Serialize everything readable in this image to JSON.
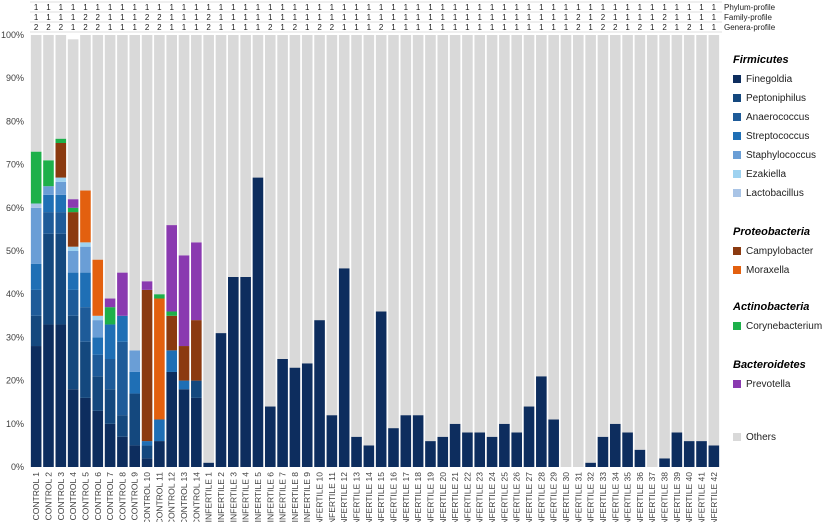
{
  "chart_data": {
    "type": "bar",
    "stacked": true,
    "ylim": [
      0,
      100
    ],
    "y_ticks": [
      "0%",
      "10%",
      "20%",
      "30%",
      "40%",
      "50%",
      "60%",
      "70%",
      "80%",
      "90%",
      "100%"
    ],
    "grid": false,
    "legend_position": "right",
    "categories": [
      "CONTROL 1",
      "CONTROL 2",
      "CONTROL 3",
      "CONTROL 4",
      "CONTROL 5",
      "CONTROL 6",
      "CONTROL 7",
      "CONTROL 8",
      "CONTROL 9",
      "CONTROL 10",
      "CONTROL 11",
      "CONTROL 12",
      "CONTROL 13",
      "CONTROL 14",
      "INFERTILE 1",
      "INFERTILE 2",
      "INFERTILE 3",
      "INFERTILE 4",
      "INFERTILE 5",
      "INFERTILE 6",
      "INFERTILE 7",
      "INFERTILE 8",
      "INFERTILE 9",
      "INFERTILE 10",
      "INFERTILE 11",
      "INFERTILE 12",
      "INFERTILE 13",
      "INFERTILE 14",
      "INFERTILE 15",
      "INFERTILE 16",
      "INFERTILE 17",
      "INFERTILE 18",
      "INFERTILE 19",
      "INFERTILE 20",
      "INFERTILE 21",
      "INFERTILE 22",
      "INFERTILE 23",
      "INFERTILE 24",
      "INFERTILE 25",
      "INFERTILE 26",
      "INFERTILE 27",
      "INFERTILE 28",
      "INFERTILE 29",
      "INFERTILE 30",
      "INFERTILE 31",
      "INFERTILE 32",
      "INFERTILE 33",
      "INFERTILE 34",
      "INFERTILE 35",
      "INFERTILE 36",
      "INFERTILE 37",
      "INFERTILE 38",
      "INFERTILE 39",
      "INFERTILE 40",
      "INFERTILE 41",
      "INFERTILE 42"
    ],
    "profiles": [
      {
        "name": "Phylum-profile",
        "values": [
          "1",
          "1",
          "1",
          "1",
          "1",
          "1",
          "1",
          "1",
          "1",
          "1",
          "1",
          "1",
          "1",
          "1",
          "1",
          "1",
          "1",
          "1",
          "1",
          "1",
          "1",
          "1",
          "1",
          "1",
          "1",
          "1",
          "1",
          "1",
          "1",
          "1",
          "1",
          "1",
          "1",
          "1",
          "1",
          "1",
          "1",
          "1",
          "1",
          "1",
          "1",
          "1",
          "1",
          "1",
          "1",
          "1",
          "1",
          "1",
          "1",
          "1",
          "1",
          "1",
          "1",
          "1",
          "1",
          "1"
        ]
      },
      {
        "name": "Family-profile",
        "values": [
          "1",
          "1",
          "1",
          "1",
          "2",
          "2",
          "1",
          "1",
          "1",
          "2",
          "2",
          "1",
          "1",
          "1",
          "2",
          "1",
          "1",
          "1",
          "1",
          "1",
          "1",
          "1",
          "1",
          "1",
          "1",
          "1",
          "1",
          "1",
          "1",
          "1",
          "1",
          "1",
          "1",
          "1",
          "1",
          "1",
          "1",
          "1",
          "1",
          "1",
          "1",
          "1",
          "1",
          "1",
          "2",
          "1",
          "2",
          "1",
          "1",
          "1",
          "1",
          "2",
          "1",
          "1",
          "1",
          "1"
        ]
      },
      {
        "name": "Genera-profile",
        "values": [
          "2",
          "2",
          "2",
          "1",
          "2",
          "2",
          "1",
          "1",
          "1",
          "2",
          "2",
          "1",
          "1",
          "1",
          "2",
          "1",
          "1",
          "1",
          "1",
          "2",
          "1",
          "2",
          "1",
          "2",
          "2",
          "1",
          "1",
          "1",
          "2",
          "1",
          "1",
          "1",
          "1",
          "1",
          "1",
          "1",
          "1",
          "1",
          "1",
          "1",
          "1",
          "1",
          "1",
          "1",
          "2",
          "1",
          "2",
          "2",
          "1",
          "2",
          "1",
          "2",
          "1",
          "2",
          "1",
          "1"
        ]
      }
    ],
    "legend_groups": [
      {
        "name": "Firmicutes",
        "series": [
          "Finegoldia",
          "Peptoniphilus",
          "Anaerococcus",
          "Streptococcus",
          "Staphylococcus",
          "Ezakiella",
          "Lactobacillus"
        ]
      },
      {
        "name": "Proteobacteria",
        "series": [
          "Campylobacter",
          "Moraxella"
        ]
      },
      {
        "name": "Actinobacteria",
        "series": [
          "Corynebacterium"
        ]
      },
      {
        "name": "Bacteroidetes",
        "series": [
          "Prevotella"
        ]
      },
      {
        "name": "",
        "series": [
          "Others"
        ]
      }
    ],
    "series": [
      {
        "name": "Finegoldia",
        "color": "#0d2d5e",
        "values": [
          28,
          33,
          33,
          18,
          16,
          13,
          10,
          7,
          5,
          2,
          6,
          22,
          18,
          16,
          1,
          31,
          44,
          44,
          67,
          14,
          25,
          23,
          24,
          34,
          12,
          46,
          7,
          5,
          36,
          9,
          12,
          12,
          6,
          7,
          10,
          8,
          8,
          7,
          10,
          8,
          14,
          21,
          11,
          0,
          0,
          1,
          7,
          10,
          8,
          4,
          0,
          2,
          8,
          6,
          6,
          5
        ]
      },
      {
        "name": "Peptoniphilus",
        "color": "#14487e",
        "values": [
          7,
          21,
          21,
          17,
          13,
          8,
          8,
          5,
          12,
          3,
          0,
          0,
          0,
          4,
          0,
          0,
          0,
          0,
          0,
          0,
          0,
          0,
          0,
          0,
          0,
          0,
          0,
          0,
          0,
          0,
          0,
          0,
          0,
          0,
          0,
          0,
          0,
          0,
          0,
          0,
          0,
          0,
          0,
          0,
          0,
          0,
          0,
          0,
          0,
          0,
          0,
          0,
          0,
          0,
          0,
          0
        ]
      },
      {
        "name": "Anaerococcus",
        "color": "#1e5b99",
        "values": [
          6,
          5,
          5,
          6,
          8,
          5,
          7,
          17,
          0,
          0,
          0,
          0,
          0,
          0,
          0,
          0,
          0,
          0,
          0,
          0,
          0,
          0,
          0,
          0,
          0,
          0,
          0,
          0,
          0,
          0,
          0,
          0,
          0,
          0,
          0,
          0,
          0,
          0,
          0,
          0,
          0,
          0,
          0,
          0,
          0,
          0,
          0,
          0,
          0,
          0,
          0,
          0,
          0,
          0,
          0,
          0
        ]
      },
      {
        "name": "Streptococcus",
        "color": "#1f6fb5",
        "values": [
          6,
          4,
          4,
          4,
          8,
          4,
          8,
          6,
          5,
          1,
          5,
          5,
          2,
          0,
          0,
          0,
          0,
          0,
          0,
          0,
          0,
          0,
          0,
          0,
          0,
          0,
          0,
          0,
          0,
          0,
          0,
          0,
          0,
          0,
          0,
          0,
          0,
          0,
          0,
          0,
          0,
          0,
          0,
          0,
          0,
          0,
          0,
          0,
          0,
          0,
          0,
          0,
          0,
          0,
          0,
          0
        ]
      },
      {
        "name": "Staphylococcus",
        "color": "#6a9ed6",
        "values": [
          13,
          2,
          3,
          5,
          6,
          4,
          0,
          0,
          5,
          0,
          0,
          0,
          0,
          0,
          0,
          0,
          0,
          0,
          0,
          0,
          0,
          0,
          0,
          0,
          0,
          0,
          0,
          0,
          0,
          0,
          0,
          0,
          0,
          0,
          0,
          0,
          0,
          0,
          0,
          0,
          0,
          0,
          0,
          0,
          0,
          0,
          0,
          0,
          0,
          0,
          0,
          0,
          0,
          0,
          0,
          0
        ]
      },
      {
        "name": "Ezakiella",
        "color": "#9ed2f0",
        "values": [
          0,
          0,
          1,
          1,
          1,
          1,
          0,
          0,
          0,
          0,
          0,
          0,
          0,
          0,
          0,
          0,
          0,
          0,
          0,
          0,
          0,
          0,
          0,
          0,
          0,
          0,
          0,
          0,
          0,
          0,
          0,
          0,
          0,
          0,
          0,
          0,
          0,
          0,
          0,
          0,
          0,
          0,
          0,
          0,
          0,
          0,
          0,
          0,
          0,
          0,
          0,
          0,
          0,
          0,
          0,
          0
        ]
      },
      {
        "name": "Lactobacillus",
        "color": "#a9c4e6",
        "values": [
          1,
          0,
          0,
          0,
          0,
          0,
          0,
          0,
          0,
          0,
          0,
          0,
          0,
          0,
          0,
          0,
          0,
          0,
          0,
          0,
          0,
          0,
          0,
          0,
          0,
          0,
          0,
          0,
          0,
          0,
          0,
          0,
          0,
          0,
          0,
          0,
          0,
          0,
          0,
          0,
          0,
          0,
          0,
          0,
          0,
          0,
          0,
          0,
          0,
          0,
          0,
          0,
          0,
          0,
          0,
          0
        ]
      },
      {
        "name": "Campylobacter",
        "color": "#8b3a10",
        "values": [
          0,
          0,
          8,
          8,
          0,
          0,
          0,
          0,
          0,
          35,
          0,
          8,
          8,
          14,
          0,
          0,
          0,
          0,
          0,
          0,
          0,
          0,
          0,
          0,
          0,
          0,
          0,
          0,
          0,
          0,
          0,
          0,
          0,
          0,
          0,
          0,
          0,
          0,
          0,
          0,
          0,
          0,
          0,
          0,
          0,
          0,
          0,
          0,
          0,
          0,
          0,
          0,
          0,
          0,
          0,
          0
        ]
      },
      {
        "name": "Moraxella",
        "color": "#e3600f",
        "values": [
          0,
          0,
          0,
          0,
          12,
          13,
          0,
          0,
          0,
          0,
          28,
          0,
          0,
          0,
          0,
          0,
          0,
          0,
          0,
          0,
          0,
          0,
          0,
          0,
          0,
          0,
          0,
          0,
          0,
          0,
          0,
          0,
          0,
          0,
          0,
          0,
          0,
          0,
          0,
          0,
          0,
          0,
          0,
          0,
          0,
          0,
          0,
          0,
          0,
          0,
          0,
          0,
          0,
          0,
          0,
          0
        ]
      },
      {
        "name": "Corynebacterium",
        "color": "#1db04a",
        "values": [
          12,
          6,
          1,
          1,
          0,
          0,
          4,
          0,
          0,
          0,
          1,
          1,
          0,
          0,
          0,
          0,
          0,
          0,
          0,
          0,
          0,
          0,
          0,
          0,
          0,
          0,
          0,
          0,
          0,
          0,
          0,
          0,
          0,
          0,
          0,
          0,
          0,
          0,
          0,
          0,
          0,
          0,
          0,
          0,
          0,
          0,
          0,
          0,
          0,
          0,
          0,
          0,
          0,
          0,
          0,
          0
        ]
      },
      {
        "name": "Prevotella",
        "color": "#8a3ab0",
        "values": [
          0,
          0,
          0,
          2,
          0,
          0,
          2,
          10,
          0,
          2,
          0,
          20,
          21,
          18,
          0,
          0,
          0,
          0,
          0,
          0,
          0,
          0,
          0,
          0,
          0,
          0,
          0,
          0,
          0,
          0,
          0,
          0,
          0,
          0,
          0,
          0,
          0,
          0,
          0,
          0,
          0,
          0,
          0,
          0,
          0,
          0,
          0,
          0,
          0,
          0,
          0,
          0,
          0,
          0,
          0,
          0
        ]
      },
      {
        "name": "Others",
        "color": "#d9d9d9",
        "values": [
          27,
          29,
          24,
          37,
          36,
          52,
          61,
          55,
          73,
          57,
          60,
          44,
          51,
          48,
          99,
          69,
          56,
          56,
          33,
          86,
          75,
          77,
          76,
          66,
          88,
          54,
          93,
          95,
          64,
          91,
          88,
          88,
          94,
          93,
          90,
          92,
          92,
          93,
          90,
          92,
          86,
          79,
          89,
          100,
          100,
          99,
          93,
          90,
          92,
          96,
          100,
          98,
          92,
          94,
          94,
          95
        ]
      }
    ]
  }
}
